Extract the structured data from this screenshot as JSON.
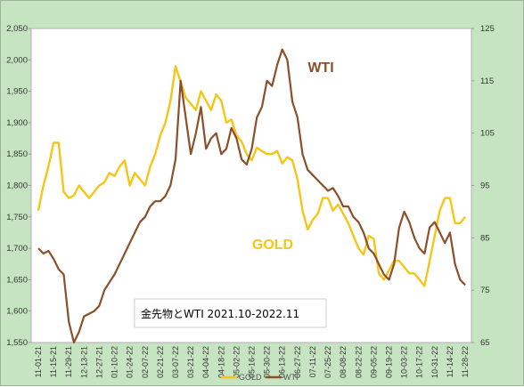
{
  "chart_data": {
    "type": "line",
    "title": "金先物とWTI 2021.10-2022.11",
    "x_labels": [
      "11-01-21",
      "11-15-21",
      "11-29-21",
      "12-13-21",
      "12-27-21",
      "01-10-22",
      "01-24-22",
      "02-07-22",
      "02-21-22",
      "03-07-22",
      "03-21-22",
      "04-04-22",
      "04-18-22",
      "05-02-22",
      "05-16-22",
      "05-30-22",
      "06-13-22",
      "06-27-22",
      "07-11-22",
      "07-25-22",
      "08-08-22",
      "08-22-22",
      "09-05-22",
      "09-19-22",
      "10-03-22",
      "10-17-22",
      "10-31-22",
      "11-14-22",
      "11-28-22"
    ],
    "y_left": {
      "ticks": [
        "1,550",
        "1,600",
        "1,650",
        "1,700",
        "1,750",
        "1,800",
        "1,850",
        "1,900",
        "1,950",
        "2,000",
        "2,050"
      ],
      "min": 1550,
      "max": 2050
    },
    "y_right": {
      "ticks": [
        "65",
        "75",
        "85",
        "95",
        "105",
        "115",
        "125"
      ],
      "min": 65,
      "max": 125
    },
    "series": [
      {
        "name": "GOLD",
        "axis": "left",
        "color": "#f5c518",
        "values": [
          1760,
          1800,
          1830,
          1868,
          1868,
          1790,
          1780,
          1784,
          1800,
          1790,
          1780,
          1790,
          1800,
          1805,
          1820,
          1815,
          1830,
          1840,
          1800,
          1820,
          1810,
          1800,
          1830,
          1850,
          1880,
          1900,
          1935,
          1990,
          1965,
          1940,
          1930,
          1920,
          1950,
          1935,
          1920,
          1945,
          1935,
          1900,
          1905,
          1880,
          1870,
          1850,
          1840,
          1860,
          1855,
          1850,
          1850,
          1855,
          1835,
          1845,
          1840,
          1810,
          1760,
          1730,
          1745,
          1755,
          1780,
          1780,
          1760,
          1770,
          1755,
          1740,
          1720,
          1700,
          1690,
          1720,
          1715,
          1660,
          1650,
          1665,
          1680,
          1680,
          1670,
          1660,
          1660,
          1650,
          1640,
          1680,
          1720,
          1760,
          1780,
          1780,
          1740,
          1740,
          1750
        ]
      },
      {
        "name": "WTI",
        "axis": "right",
        "color": "#8b4f2a",
        "values": [
          83,
          82,
          82.5,
          81,
          79,
          78,
          69,
          65,
          67,
          70,
          70.5,
          71,
          72,
          75,
          76.5,
          78,
          80,
          82,
          84,
          86,
          88,
          89,
          91,
          92,
          92,
          93,
          95,
          100,
          115,
          108,
          101,
          105,
          110,
          102,
          104,
          105,
          101,
          102,
          106,
          104,
          100,
          99,
          102,
          108,
          110,
          115,
          114,
          118,
          121,
          119,
          111,
          108,
          101,
          98,
          97,
          96,
          95,
          94,
          94.5,
          93,
          91,
          91,
          89,
          88,
          86,
          83,
          82,
          80,
          78,
          77,
          80,
          87,
          90,
          88,
          85,
          83,
          82,
          87,
          88,
          86,
          84,
          86,
          80,
          77,
          76
        ]
      }
    ],
    "annotations": [
      "WTI",
      "GOLD"
    ],
    "legend": "bottom",
    "grid": false
  }
}
